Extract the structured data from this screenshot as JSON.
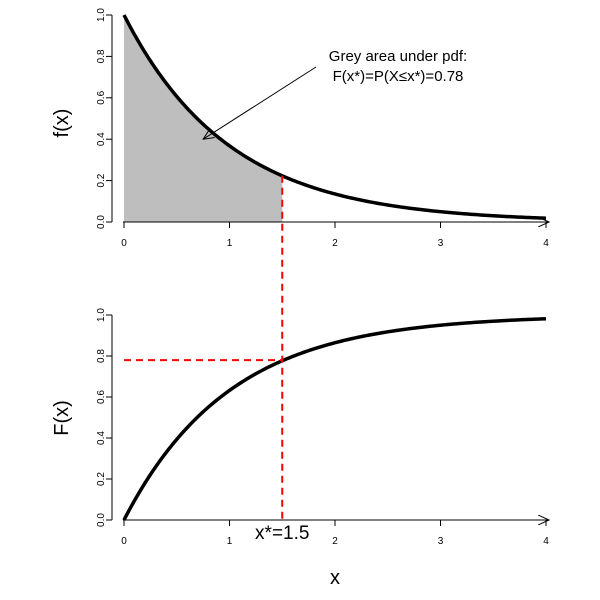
{
  "chart_data": [
    {
      "type": "area",
      "function": "pdf",
      "rate": 1,
      "xlim": [
        0,
        4
      ],
      "ylim": [
        0,
        1
      ],
      "x": [
        0,
        0.25,
        0.5,
        0.75,
        1,
        1.25,
        1.5,
        1.75,
        2,
        2.5,
        3,
        3.5,
        4
      ],
      "y": [
        1.0,
        0.78,
        0.61,
        0.47,
        0.37,
        0.29,
        0.22,
        0.17,
        0.14,
        0.08,
        0.05,
        0.03,
        0.02
      ],
      "shaded_range": [
        0,
        1.5
      ],
      "shade_color": "#bebebe",
      "xticks": [
        "0",
        "1",
        "2",
        "3",
        "4"
      ],
      "yticks": [
        "0.0",
        "0.2",
        "0.4",
        "0.6",
        "0.8",
        "1.0"
      ],
      "ylabel": "f(x)",
      "annotation": {
        "line1": "Grey area under pdf:",
        "line2": "F(x*)=P(X≤x*)=0.78",
        "arrow_target": [
          0.75,
          0.4
        ]
      }
    },
    {
      "type": "line",
      "function": "cdf",
      "rate": 1,
      "xlim": [
        0,
        4
      ],
      "ylim": [
        0,
        1
      ],
      "x": [
        0,
        0.25,
        0.5,
        0.75,
        1,
        1.25,
        1.5,
        1.75,
        2,
        2.5,
        3,
        3.5,
        4
      ],
      "y": [
        0.0,
        0.22,
        0.39,
        0.53,
        0.63,
        0.71,
        0.78,
        0.83,
        0.86,
        0.92,
        0.95,
        0.97,
        0.98
      ],
      "xticks": [
        "0",
        "1",
        "2",
        "3",
        "4"
      ],
      "yticks": [
        "0.0",
        "0.2",
        "0.4",
        "0.6",
        "0.8",
        "1.0"
      ],
      "ylabel": "F(x)",
      "xlabel": "x",
      "marker": {
        "x": 1.5,
        "y": 0.78,
        "label": "x*=1.5",
        "color": "#ff0000"
      }
    }
  ]
}
